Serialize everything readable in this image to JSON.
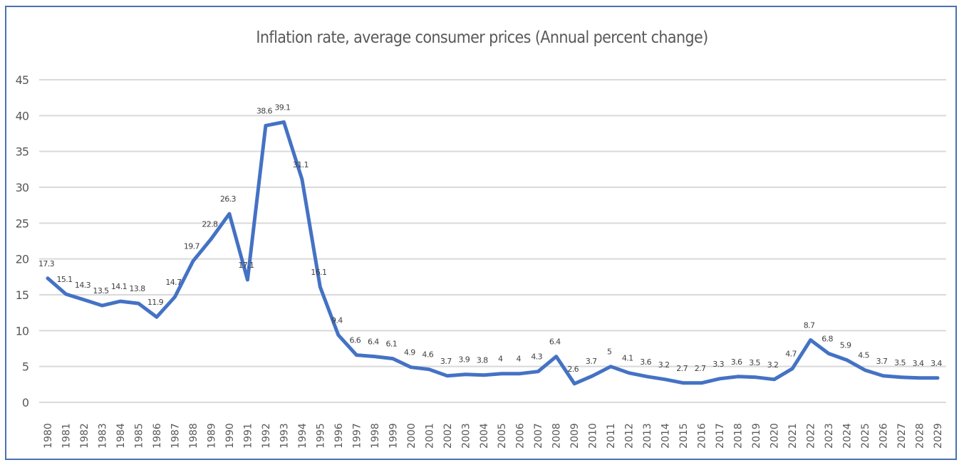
{
  "chart_data": {
    "type": "line",
    "title": "Inflation rate, average consumer prices (Annual percent change)",
    "xlabel": "",
    "ylabel": "",
    "ylim": [
      0,
      45
    ],
    "yticks": [
      0,
      5,
      10,
      15,
      20,
      25,
      30,
      35,
      40,
      45
    ],
    "grid": true,
    "legend": "none",
    "line_color": "#4472c4",
    "x": [
      "1980",
      "1981",
      "1982",
      "1983",
      "1984",
      "1985",
      "1986",
      "1987",
      "1988",
      "1989",
      "1990",
      "1991",
      "1992",
      "1993",
      "1994",
      "1995",
      "1996",
      "1997",
      "1998",
      "1999",
      "2000",
      "2001",
      "2002",
      "2003",
      "2004",
      "2005",
      "2006",
      "2007",
      "2008",
      "2009",
      "2010",
      "2011",
      "2012",
      "2013",
      "2014",
      "2015",
      "2016",
      "2017",
      "2018",
      "2019",
      "2020",
      "2021",
      "2022",
      "2023",
      "2024",
      "2025",
      "2026",
      "2027",
      "2028",
      "2029"
    ],
    "series": [
      {
        "name": "Inflation rate",
        "values": [
          17.3,
          15.1,
          14.3,
          13.5,
          14.1,
          13.8,
          11.9,
          14.7,
          19.7,
          22.8,
          26.3,
          17.1,
          38.6,
          39.1,
          31.1,
          16.1,
          9.4,
          6.6,
          6.4,
          6.1,
          4.9,
          4.6,
          3.7,
          3.9,
          3.8,
          4,
          4,
          4.3,
          6.4,
          2.6,
          3.7,
          5,
          4.1,
          3.6,
          3.2,
          2.7,
          2.7,
          3.3,
          3.6,
          3.5,
          3.2,
          4.7,
          8.7,
          6.8,
          5.9,
          4.5,
          3.7,
          3.5,
          3.4,
          3.4
        ]
      }
    ]
  }
}
